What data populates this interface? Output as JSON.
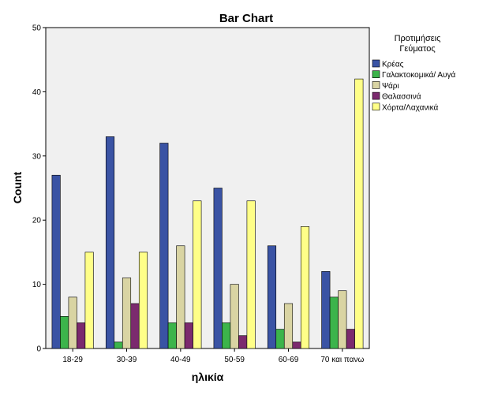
{
  "chart_data": {
    "type": "bar",
    "title": "Bar Chart",
    "xlabel": "ηλικία",
    "ylabel": "Count",
    "ylim": [
      0,
      50
    ],
    "yticks": [
      0,
      10,
      20,
      30,
      40,
      50
    ],
    "grid": false,
    "legend_position": "right",
    "legend_title": "Προτιμήσεις Γεύματος",
    "legend_title_lines": [
      "Προτιμήσεις",
      "Γεύματος"
    ],
    "categories": [
      "18-29",
      "30-39",
      "40-49",
      "50-59",
      "60-69",
      "70 και πανω"
    ],
    "series": [
      {
        "name": "Κρέας",
        "color": "#3a53a4",
        "values": [
          27,
          33,
          32,
          25,
          16,
          12
        ]
      },
      {
        "name": "Γαλακτοκομικά/ Αυγά",
        "color": "#3cb44b",
        "values": [
          5,
          1,
          4,
          4,
          3,
          8
        ]
      },
      {
        "name": "Ψάρι",
        "color": "#d9d4a3",
        "values": [
          8,
          11,
          16,
          10,
          7,
          9
        ]
      },
      {
        "name": "Θαλασσινά",
        "color": "#7b2a6e",
        "values": [
          4,
          7,
          4,
          2,
          1,
          3
        ]
      },
      {
        "name": "Χόρτα/Λαχανικά",
        "color": "#ffff88",
        "values": [
          15,
          15,
          23,
          23,
          19,
          42
        ]
      }
    ],
    "plot_background": "#f0f0f0"
  }
}
